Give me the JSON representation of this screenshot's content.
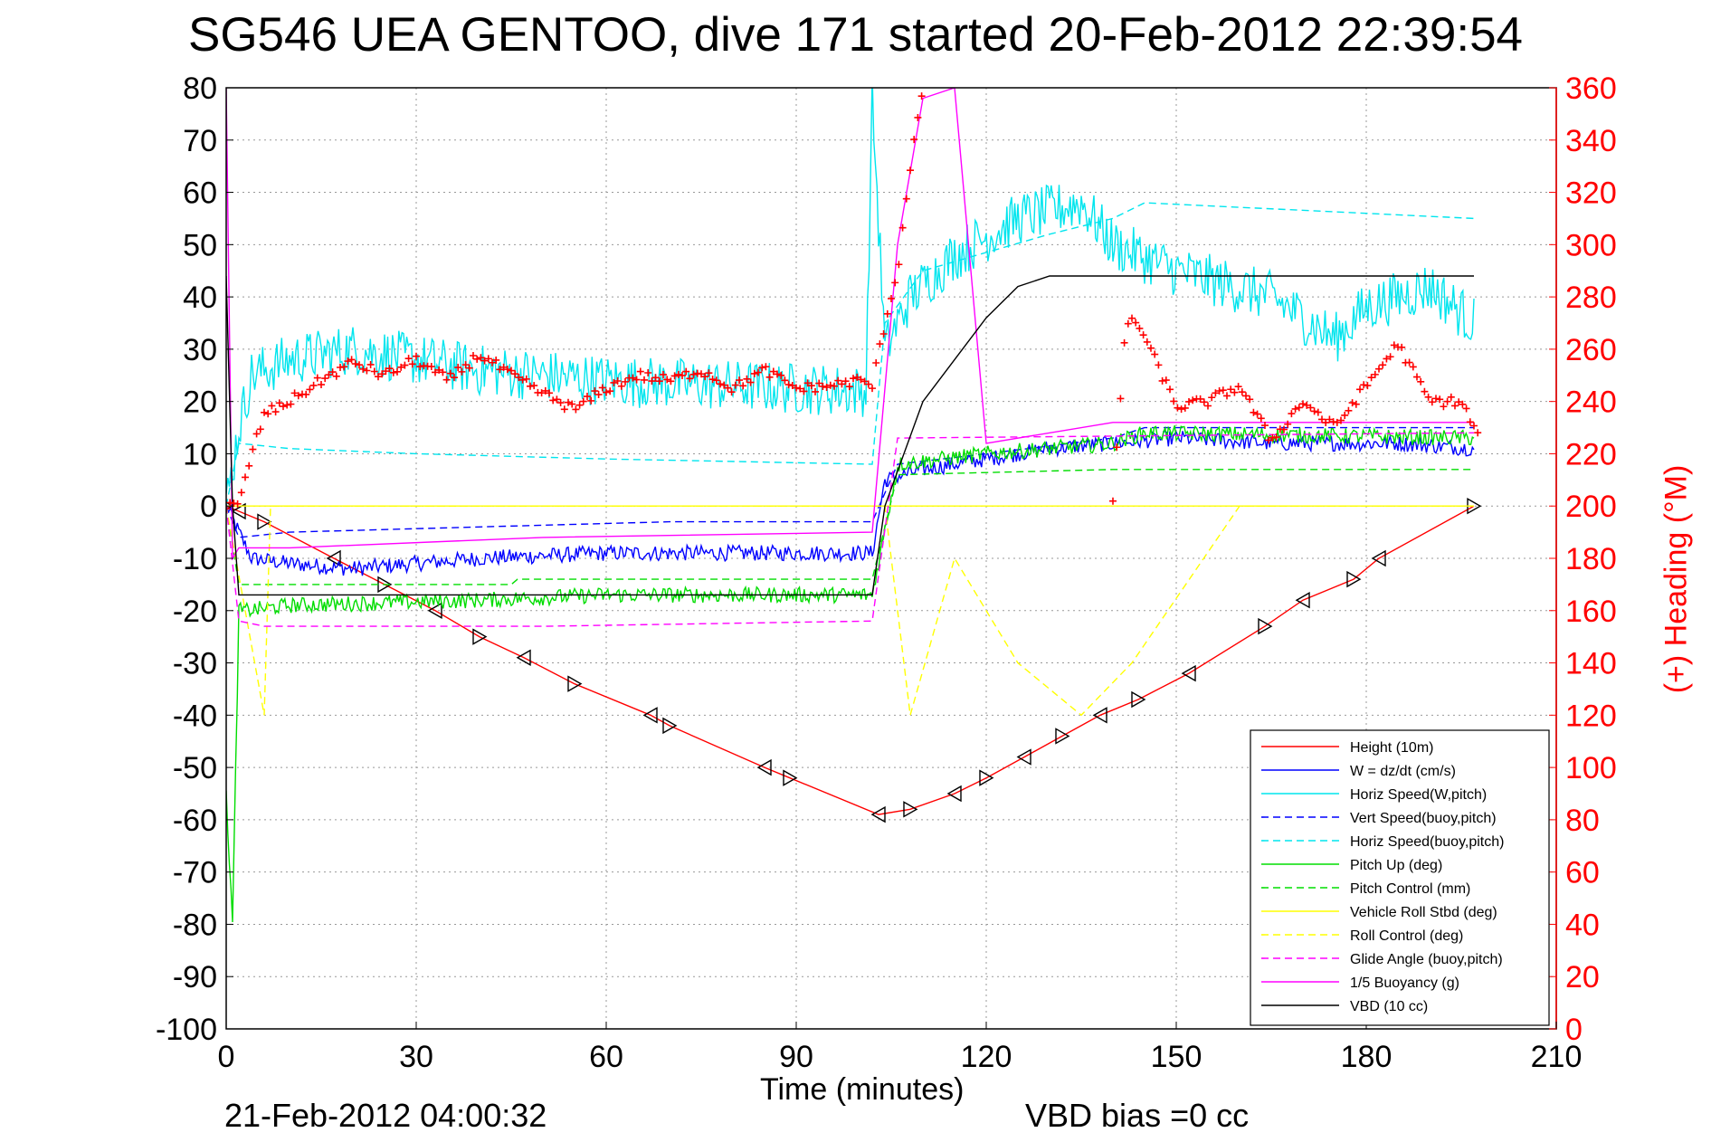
{
  "chart_data": {
    "type": "line",
    "title": "SG546 UEA GENTOO, dive 171 started 20-Feb-2012 22:39:54",
    "xlabel": "Time (minutes)",
    "ylabel": "",
    "y2label": "(+) Heading (°M)",
    "xlim": [
      0,
      210
    ],
    "ylim": [
      -100,
      80
    ],
    "y2lim": [
      0,
      360
    ],
    "xticks": [
      0,
      30,
      60,
      90,
      120,
      150,
      180,
      210
    ],
    "yticks": [
      80,
      70,
      60,
      50,
      40,
      30,
      20,
      10,
      0,
      -10,
      -20,
      -30,
      -40,
      -50,
      -60,
      -70,
      -80,
      -90,
      -100
    ],
    "y2ticks": [
      360,
      340,
      320,
      300,
      280,
      260,
      240,
      220,
      200,
      180,
      160,
      140,
      120,
      100,
      80,
      60,
      40,
      20,
      0
    ],
    "grid": true,
    "legend_position": "bottom-right",
    "footer_left": "21-Feb-2012 04:00:32",
    "footer_right": "VBD bias =0 cc",
    "series": [
      {
        "name": "Height (10m)",
        "color": "#ff0000",
        "style": "solid",
        "marker": "triangle",
        "x": [
          0,
          2,
          6,
          17,
          25,
          33,
          40,
          47,
          55,
          67,
          70,
          85,
          89,
          103,
          108,
          115,
          120,
          126,
          132,
          138,
          144,
          152,
          164,
          170,
          178,
          182,
          197
        ],
        "y": [
          0,
          -1,
          -3,
          -10,
          -15,
          -20,
          -25,
          -29,
          -34,
          -40,
          -42,
          -50,
          -52,
          -59,
          -58,
          -55,
          -52,
          -48,
          -44,
          -40,
          -37,
          -32,
          -23,
          -18,
          -14,
          -10,
          0
        ]
      },
      {
        "name": "W = dz/dt (cm/s)",
        "color": "#0000ff",
        "style": "solid",
        "noisy": true,
        "x": [
          0,
          2,
          4,
          10,
          20,
          40,
          60,
          80,
          102,
          104,
          110,
          120,
          130,
          140,
          150,
          165,
          185,
          197
        ],
        "y": [
          0,
          -5,
          -10,
          -11,
          -12,
          -10,
          -9,
          -9,
          -9,
          5,
          7,
          9,
          11,
          12,
          13,
          12,
          12,
          11
        ]
      },
      {
        "name": "Horiz Speed(W,pitch)",
        "color": "#00e5ee",
        "style": "solid",
        "noisy": true,
        "x": [
          0,
          2,
          4,
          10,
          20,
          40,
          60,
          80,
          101,
          102,
          104,
          108,
          115,
          125,
          135,
          140,
          150,
          165,
          175,
          180,
          190,
          197
        ],
        "y": [
          0,
          15,
          25,
          28,
          30,
          26,
          24,
          23,
          22,
          78,
          30,
          40,
          48,
          55,
          58,
          50,
          45,
          40,
          32,
          38,
          42,
          35
        ]
      },
      {
        "name": "Vert Speed(buoy,pitch)",
        "color": "#0000ff",
        "style": "dashed",
        "x": [
          0,
          2,
          10,
          40,
          70,
          102,
          106,
          120,
          140,
          145,
          197
        ],
        "y": [
          0,
          -6,
          -5,
          -4,
          -3,
          -3,
          8,
          10,
          13,
          15,
          15
        ]
      },
      {
        "name": "Horiz Speed(buoy,pitch)",
        "color": "#00e5ee",
        "style": "dashed",
        "x": [
          0,
          2,
          10,
          30,
          60,
          102,
          104,
          110,
          130,
          140,
          145,
          197
        ],
        "y": [
          0,
          12,
          11,
          10,
          9,
          8,
          35,
          45,
          52,
          55,
          58,
          55
        ]
      },
      {
        "name": "Pitch Up (deg)",
        "color": "#00dd00",
        "style": "solid",
        "noisy": true,
        "x": [
          0,
          1,
          2,
          3,
          10,
          40,
          60,
          102,
          106,
          120,
          140,
          145,
          197
        ],
        "y": [
          -55,
          -80,
          -20,
          -20,
          -19,
          -18,
          -17,
          -17,
          8,
          10,
          12,
          14,
          13
        ]
      },
      {
        "name": "Pitch Control (mm)",
        "color": "#00dd00",
        "style": "dashed",
        "x": [
          0,
          2,
          10,
          45,
          46,
          102,
          106,
          140,
          197
        ],
        "y": [
          0,
          -15,
          -15,
          -15,
          -14,
          -14,
          6,
          7,
          7
        ]
      },
      {
        "name": "Vehicle Roll Stbd (deg)",
        "color": "#ffff00",
        "style": "solid",
        "x": [
          0,
          2,
          10,
          100,
          102,
          140,
          196,
          197
        ],
        "y": [
          0,
          0,
          0,
          0,
          0,
          0,
          0,
          0
        ]
      },
      {
        "name": "Roll Control (deg)",
        "color": "#ffff00",
        "style": "dashed",
        "x": [
          0,
          6,
          7,
          20,
          50,
          90,
          104,
          108,
          115,
          125,
          135,
          143,
          160,
          180,
          197
        ],
        "y": [
          0,
          -40,
          0,
          0,
          0,
          0,
          0,
          -40,
          -10,
          -30,
          -40,
          -30,
          0,
          0,
          0
        ]
      },
      {
        "name": "Glide Angle (buoy,pitch)",
        "color": "#ff00ff",
        "style": "dashed",
        "x": [
          0,
          2,
          6,
          50,
          102,
          106,
          197
        ],
        "y": [
          0,
          -22,
          -23,
          -23,
          -22,
          13,
          14
        ]
      },
      {
        "name": "1/5 Buoyancy (g)",
        "color": "#ff00ff",
        "style": "solid",
        "x": [
          0,
          1,
          2,
          10,
          50,
          102,
          106,
          110,
          115,
          120,
          140,
          197
        ],
        "y": [
          80,
          -10,
          -8,
          -8,
          -6,
          -5,
          50,
          78,
          80,
          12,
          16,
          16
        ]
      },
      {
        "name": "VBD (10 cc)",
        "color": "#000000",
        "style": "solid",
        "x": [
          0,
          1,
          2,
          102,
          104,
          110,
          115,
          120,
          125,
          130,
          197
        ],
        "y": [
          44,
          0,
          -17,
          -17,
          0,
          20,
          28,
          36,
          42,
          44,
          44
        ]
      },
      {
        "name": "Heading",
        "axis": "right",
        "color": "#ff0000",
        "style": "marker",
        "marker": "plus",
        "x": [
          0,
          2,
          4,
          6,
          10,
          15,
          20,
          25,
          30,
          35,
          40,
          45,
          50,
          55,
          60,
          65,
          70,
          75,
          80,
          85,
          90,
          95,
          100,
          102,
          104,
          106,
          108,
          110
        ],
        "y": [
          200,
          200,
          220,
          235,
          240,
          248,
          255,
          250,
          256,
          248,
          258,
          250,
          243,
          237,
          245,
          250,
          248,
          252,
          245,
          252,
          245,
          246,
          248,
          246,
          270,
          290,
          330,
          360
        ]
      },
      {
        "name": "Heading (2)",
        "axis": "right",
        "color": "#ff0000",
        "style": "marker",
        "marker": "plus",
        "x": [
          140,
          142,
          144,
          150,
          155,
          160,
          165,
          170,
          175,
          180,
          185,
          190,
          195,
          198
        ],
        "y": [
          200,
          270,
          270,
          238,
          240,
          246,
          225,
          240,
          230,
          246,
          262,
          240,
          240,
          225
        ]
      }
    ]
  }
}
